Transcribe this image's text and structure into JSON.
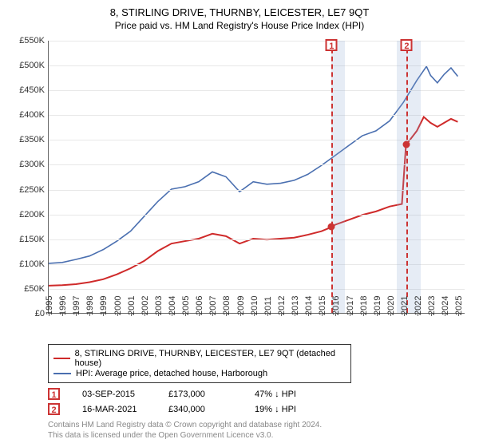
{
  "title": "8, STIRLING DRIVE, THURNBY, LEICESTER, LE7 9QT",
  "subtitle": "Price paid vs. HM Land Registry's House Price Index (HPI)",
  "chart": {
    "type": "line",
    "xlim": [
      1995,
      2025.5
    ],
    "ylim": [
      0,
      550000
    ],
    "ytick_step": 50000,
    "yticks_labels": [
      "£0",
      "£50K",
      "£100K",
      "£150K",
      "£200K",
      "£250K",
      "£300K",
      "£350K",
      "£400K",
      "£450K",
      "£500K",
      "£550K"
    ],
    "xticks": [
      1995,
      1996,
      1997,
      1998,
      1999,
      2000,
      2001,
      2002,
      2003,
      2004,
      2005,
      2006,
      2007,
      2008,
      2009,
      2010,
      2011,
      2012,
      2013,
      2014,
      2015,
      2016,
      2017,
      2018,
      2019,
      2020,
      2021,
      2022,
      2023,
      2024,
      2025
    ],
    "background_color": "#ffffff",
    "grid_color": "#e8e8e8",
    "series": [
      {
        "name": "property",
        "label": "8, STIRLING DRIVE, THURNBY, LEICESTER, LE7 9QT (detached house)",
        "color": "#cf2a2a",
        "width": 2,
        "data": [
          [
            1995,
            55000
          ],
          [
            1996,
            56000
          ],
          [
            1997,
            58000
          ],
          [
            1998,
            62000
          ],
          [
            1999,
            68000
          ],
          [
            2000,
            78000
          ],
          [
            2001,
            90000
          ],
          [
            2002,
            105000
          ],
          [
            2003,
            125000
          ],
          [
            2004,
            140000
          ],
          [
            2005,
            145000
          ],
          [
            2006,
            150000
          ],
          [
            2007,
            160000
          ],
          [
            2008,
            155000
          ],
          [
            2009,
            140000
          ],
          [
            2010,
            150000
          ],
          [
            2011,
            148000
          ],
          [
            2012,
            150000
          ],
          [
            2013,
            152000
          ],
          [
            2014,
            158000
          ],
          [
            2015,
            165000
          ],
          [
            2015.7,
            173000
          ],
          [
            2016,
            178000
          ],
          [
            2017,
            188000
          ],
          [
            2018,
            198000
          ],
          [
            2019,
            205000
          ],
          [
            2020,
            215000
          ],
          [
            2020.9,
            220000
          ],
          [
            2021.2,
            340000
          ],
          [
            2021.5,
            350000
          ],
          [
            2022,
            368000
          ],
          [
            2022.5,
            396000
          ],
          [
            2023,
            384000
          ],
          [
            2023.5,
            376000
          ],
          [
            2024,
            384000
          ],
          [
            2024.5,
            392000
          ],
          [
            2025,
            386000
          ]
        ]
      },
      {
        "name": "hpi",
        "label": "HPI: Average price, detached house, Harborough",
        "color": "#4a6fb0",
        "width": 1.6,
        "data": [
          [
            1995,
            100000
          ],
          [
            1996,
            102000
          ],
          [
            1997,
            108000
          ],
          [
            1998,
            115000
          ],
          [
            1999,
            128000
          ],
          [
            2000,
            145000
          ],
          [
            2001,
            165000
          ],
          [
            2002,
            195000
          ],
          [
            2003,
            225000
          ],
          [
            2004,
            250000
          ],
          [
            2005,
            255000
          ],
          [
            2006,
            265000
          ],
          [
            2007,
            285000
          ],
          [
            2008,
            275000
          ],
          [
            2009,
            245000
          ],
          [
            2010,
            265000
          ],
          [
            2011,
            260000
          ],
          [
            2012,
            262000
          ],
          [
            2013,
            268000
          ],
          [
            2014,
            280000
          ],
          [
            2015,
            298000
          ],
          [
            2016,
            318000
          ],
          [
            2017,
            338000
          ],
          [
            2018,
            358000
          ],
          [
            2019,
            368000
          ],
          [
            2020,
            388000
          ],
          [
            2021,
            425000
          ],
          [
            2022,
            470000
          ],
          [
            2022.7,
            498000
          ],
          [
            2023,
            480000
          ],
          [
            2023.5,
            465000
          ],
          [
            2024,
            482000
          ],
          [
            2024.5,
            495000
          ],
          [
            2025,
            478000
          ]
        ]
      }
    ],
    "shaded_ranges": [
      {
        "from": 2015.7,
        "to": 2016.7,
        "color": "rgba(140,170,210,0.22)"
      },
      {
        "from": 2020.5,
        "to": 2022.2,
        "color": "rgba(140,170,210,0.22)"
      }
    ],
    "markers": [
      {
        "n": "1",
        "x": 2015.7,
        "y": 173000
      },
      {
        "n": "2",
        "x": 2021.2,
        "y": 340000
      }
    ]
  },
  "legend": {
    "items": [
      {
        "color": "#cf2a2a",
        "label": "8, STIRLING DRIVE, THURNBY, LEICESTER, LE7 9QT (detached house)"
      },
      {
        "color": "#4a6fb0",
        "label": "HPI: Average price, detached house, Harborough"
      }
    ]
  },
  "transactions": [
    {
      "n": "1",
      "date": "03-SEP-2015",
      "price": "£173,000",
      "delta": "47% ↓ HPI"
    },
    {
      "n": "2",
      "date": "16-MAR-2021",
      "price": "£340,000",
      "delta": "19% ↓ HPI"
    }
  ],
  "footer": {
    "line1": "Contains HM Land Registry data © Crown copyright and database right 2024.",
    "line2": "This data is licensed under the Open Government Licence v3.0."
  }
}
